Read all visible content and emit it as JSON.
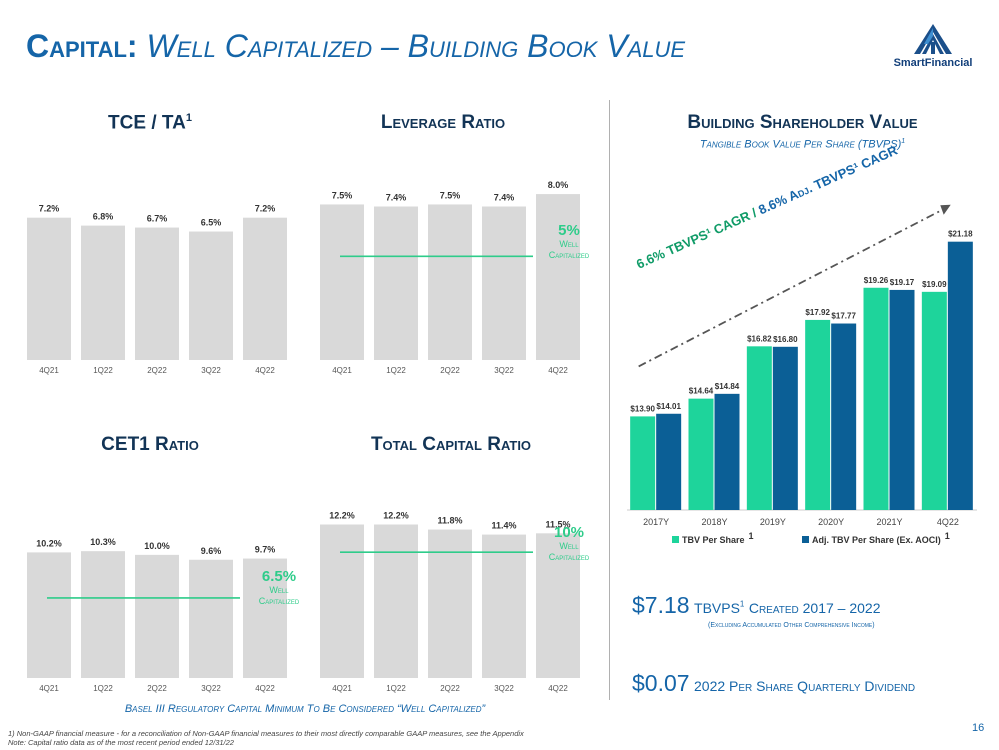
{
  "header": {
    "title_main": "Capital:",
    "title_sub": "Well Capitalized – Building Book Value",
    "logo_text": "SmartFinancial",
    "page_number": "16"
  },
  "panels": {
    "tce": {
      "title": "TCE / TA",
      "sup": "1",
      "categories": [
        "4Q21",
        "1Q22",
        "2Q22",
        "3Q22",
        "4Q22"
      ],
      "values": [
        7.2,
        6.8,
        6.7,
        6.5,
        7.2
      ],
      "labels": [
        "7.2%",
        "6.8%",
        "6.7%",
        "6.5%",
        "7.2%"
      ],
      "ylim": [
        0,
        8.5
      ]
    },
    "leverage": {
      "title": "Leverage Ratio",
      "categories": [
        "4Q21",
        "1Q22",
        "2Q22",
        "3Q22",
        "4Q22"
      ],
      "values": [
        7.5,
        7.4,
        7.5,
        7.4,
        8.0
      ],
      "labels": [
        "7.5%",
        "7.4%",
        "7.5%",
        "7.4%",
        "8.0%"
      ],
      "ylim": [
        0,
        8.1
      ],
      "threshold": 5,
      "threshold_label": "5%",
      "threshold_text": [
        "Well",
        "Capitalized"
      ]
    },
    "cet1": {
      "title": "CET1 Ratio",
      "categories": [
        "4Q21",
        "1Q22",
        "2Q22",
        "3Q22",
        "4Q22"
      ],
      "values": [
        10.2,
        10.3,
        10.0,
        9.6,
        9.7
      ],
      "labels": [
        "10.2%",
        "10.3%",
        "10.0%",
        "9.6%",
        "9.7%"
      ],
      "ylim": [
        0,
        10.8
      ],
      "threshold": 6.5,
      "threshold_label": "6.5%",
      "threshold_text": [
        "Well",
        "Capitalized"
      ]
    },
    "total": {
      "title": "Total Capital Ratio",
      "categories": [
        "4Q21",
        "1Q22",
        "2Q22",
        "3Q22",
        "4Q22"
      ],
      "values": [
        12.2,
        12.2,
        11.8,
        11.4,
        11.5
      ],
      "labels": [
        "12.2%",
        "12.2%",
        "11.8%",
        "11.4%",
        "11.5%"
      ],
      "ylim": [
        0,
        12.4
      ],
      "threshold": 10,
      "threshold_label": "10%",
      "threshold_text": [
        "Well",
        "Capitalized"
      ]
    }
  },
  "bsv": {
    "title": "Building Shareholder Value",
    "subtitle": "Tangible Book Value Per Share (TBVPS)",
    "subtitle_sup": "1",
    "cagr_green": "6.6% TBVPS¹ CAGR /",
    "cagr_blue": "8.6% Adj. TBVPS¹ CAGR"
  },
  "chart_data": {
    "type": "bar",
    "categories": [
      "2017Y",
      "2018Y",
      "2019Y",
      "2020Y",
      "2021Y",
      "4Q22"
    ],
    "series": [
      {
        "name": "TBV Per Share",
        "sup": "1",
        "color": "#1ed49b",
        "values": [
          13.9,
          14.64,
          16.82,
          17.92,
          19.26,
          19.09
        ],
        "labels": [
          "$13.90",
          "$14.64",
          "$16.82",
          "$17.92",
          "$19.26",
          "$19.09"
        ]
      },
      {
        "name": "Adj. TBV Per Share (Ex. AOCI)",
        "sup": "1",
        "color": "#0b5f96",
        "values": [
          14.01,
          14.84,
          16.8,
          17.77,
          19.17,
          21.18
        ],
        "labels": [
          "$14.01",
          "$14.84",
          "$16.80",
          "$17.77",
          "$19.17",
          "$21.18"
        ]
      }
    ],
    "ylim": [
      10,
      22.5
    ],
    "legend": "bottom"
  },
  "stats": {
    "s1_value": "$7.18",
    "s1_label_pre": "TBVPS",
    "s1_sup": "1",
    "s1_label_post": "Created 2017 – 2022",
    "s1_note": "(Excluding Accumulated Other Comprehensive Income)",
    "s2_value": "$0.07",
    "s2_label": "2022 Per Share Quarterly Dividend"
  },
  "footer": {
    "basel": "Basel III Regulatory Capital Minimum To Be Considered “Well Capitalized”",
    "note1": "1) Non-GAAP financial measure - for a reconciliation of Non-GAAP financial measures to their most directly comparable GAAP measures, see the Appendix",
    "note2": "Note: Capital ratio data as of the most recent period ended 12/31/22"
  }
}
